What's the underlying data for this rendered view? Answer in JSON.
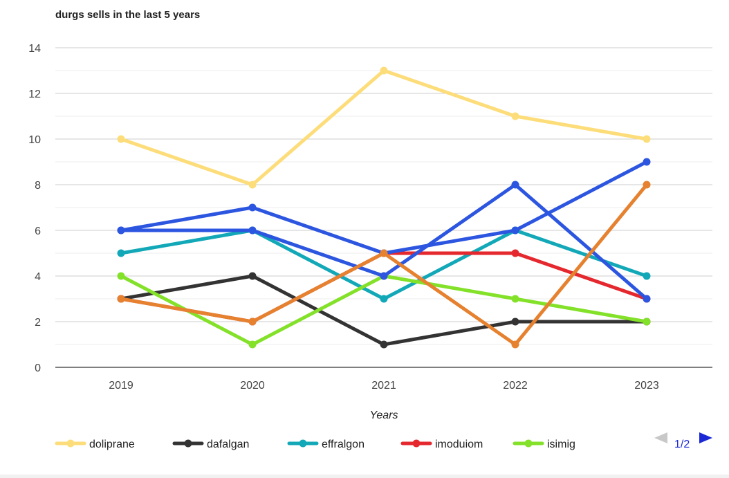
{
  "chart_data": {
    "type": "line",
    "title": "durgs sells in the last 5 years",
    "xlabel": "Years",
    "ylabel": "",
    "categories": [
      "2019",
      "2020",
      "2021",
      "2022",
      "2023"
    ],
    "ylim": [
      0,
      14
    ],
    "yticks": [
      0,
      2,
      4,
      6,
      8,
      10,
      12,
      14
    ],
    "grid": true,
    "minor_grid": true,
    "legend_position": "bottom",
    "series": [
      {
        "name": "doliprane",
        "color": "#fddd7a",
        "values": [
          10,
          8,
          13,
          11,
          10
        ],
        "in_legend": true
      },
      {
        "name": "dafalgan",
        "color": "#333333",
        "values": [
          3,
          4,
          1,
          2,
          2
        ],
        "in_legend": true
      },
      {
        "name": "effralgon",
        "color": "#12a8b8",
        "values": [
          5,
          6,
          3,
          6,
          4
        ],
        "in_legend": true
      },
      {
        "name": "imoduiom",
        "color": "#e4282e",
        "values": [
          3,
          2,
          5,
          5,
          3
        ],
        "in_legend": true
      },
      {
        "name": "isimig",
        "color": "#84e12a",
        "values": [
          4,
          1,
          4,
          3,
          2
        ],
        "in_legend": true
      },
      {
        "name": "",
        "color": "#2c55e0",
        "values": [
          6,
          7,
          5,
          6,
          9
        ],
        "in_legend": false
      },
      {
        "name": "",
        "color": "#2c55e0",
        "values": [
          6,
          6,
          4,
          8,
          3
        ],
        "in_legend": false
      },
      {
        "name": "",
        "color": "#e5812f",
        "values": [
          3,
          2,
          5,
          1,
          8
        ],
        "in_legend": false
      }
    ]
  },
  "legend_pager": {
    "page_text": "1/2",
    "prev_arrow_color": "#c8c8c8",
    "next_arrow_color": "#1a28d6"
  }
}
